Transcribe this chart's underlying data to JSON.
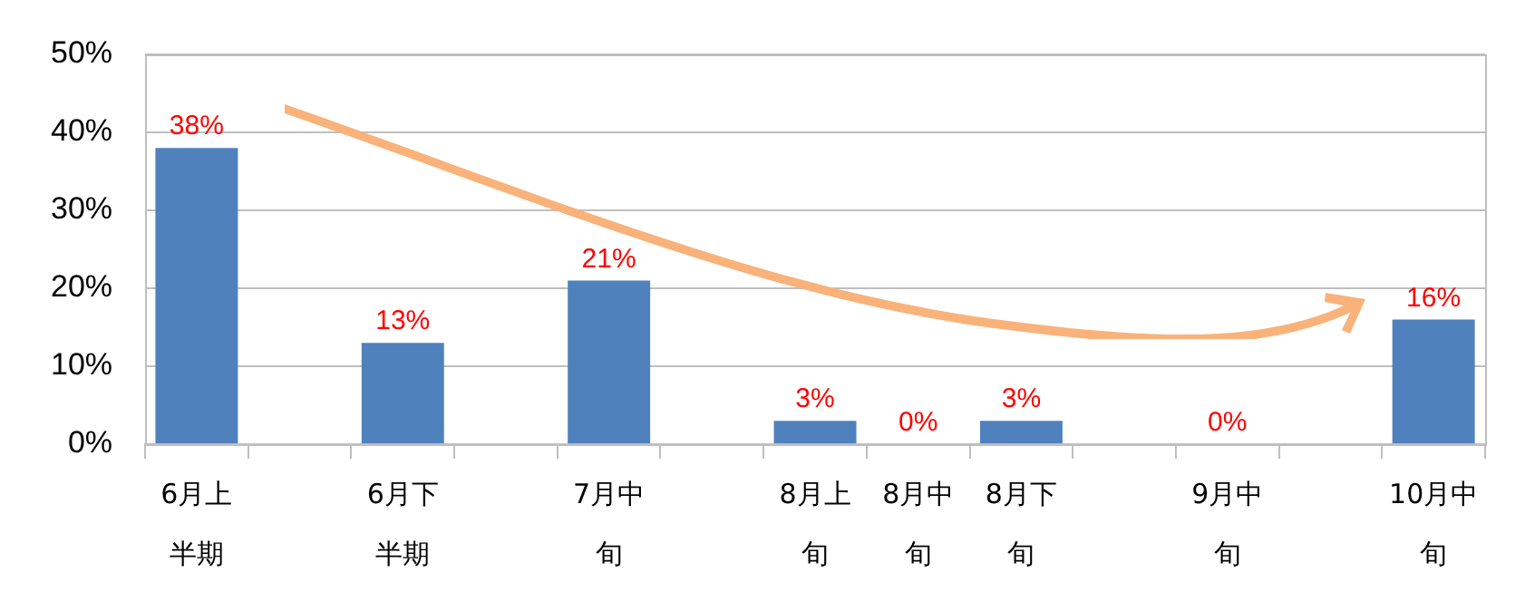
{
  "chart_data": {
    "type": "bar",
    "categories": [
      "6月上半期",
      null,
      "6月下半期",
      null,
      "7月中旬",
      null,
      "8月上旬",
      "8月中旬",
      "8月下旬",
      null,
      "9月中旬",
      null,
      "10月中旬"
    ],
    "values": [
      38,
      null,
      13,
      null,
      21,
      null,
      3,
      0,
      3,
      null,
      0,
      null,
      16
    ],
    "value_labels": [
      "38%",
      null,
      "13%",
      null,
      "21%",
      null,
      "3%",
      "0%",
      "3%",
      null,
      "0%",
      null,
      "16%"
    ],
    "color": "#4f81bd",
    "ylim": [
      0,
      50
    ],
    "yticks": [
      {
        "value": 0,
        "label": "0%"
      },
      {
        "value": 10,
        "label": "10%"
      },
      {
        "value": 20,
        "label": "20%"
      },
      {
        "value": 30,
        "label": "30%"
      },
      {
        "value": 40,
        "label": "40%"
      },
      {
        "value": 50,
        "label": "50%"
      }
    ],
    "grid": "y",
    "legend": false
  }
}
